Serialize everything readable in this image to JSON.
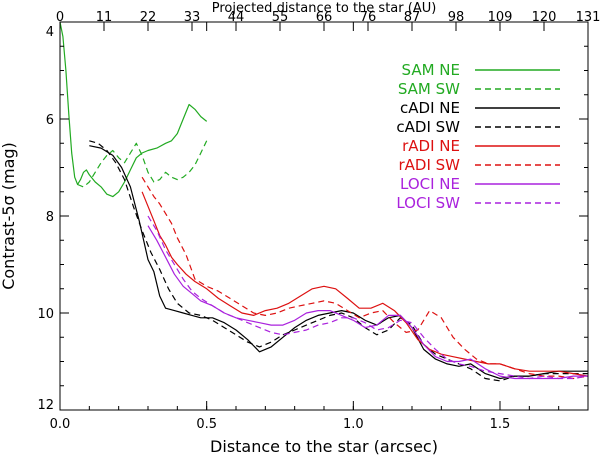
{
  "chart_data": {
    "type": "line",
    "xlabel": "Distance to the star (arcsec)",
    "x2label": "Projected distance to the star (AU)",
    "ylabel": "Contrast-5σ (mag)",
    "xlim": [
      0.0,
      1.8
    ],
    "ylim": [
      12,
      4
    ],
    "y_inverted": true,
    "grid": false,
    "legend_position": "top-right",
    "x_ticks": [
      "0.0",
      "0.5",
      "1.0",
      "1.5"
    ],
    "x_tick_values": [
      0.0,
      0.5,
      1.0,
      1.5
    ],
    "y_ticks": [
      "4",
      "6",
      "8",
      "10",
      "12"
    ],
    "y_tick_values": [
      4,
      6,
      8,
      10,
      12
    ],
    "x2_ticks": [
      "0",
      "11",
      "22",
      "33",
      "44",
      "55",
      "66",
      "76",
      "87",
      "98",
      "109",
      "120",
      "131"
    ],
    "x2_tick_positions_arcsec": [
      0.0,
      0.15,
      0.3,
      0.45,
      0.6,
      0.75,
      0.9,
      1.05,
      1.2,
      1.35,
      1.5,
      1.65,
      1.8
    ],
    "series": [
      {
        "name": "SAM NE",
        "color": "#22aa22",
        "dash": "solid",
        "x": [
          0.0,
          0.01,
          0.02,
          0.03,
          0.04,
          0.05,
          0.06,
          0.07,
          0.08,
          0.09,
          0.1,
          0.12,
          0.14,
          0.16,
          0.18,
          0.2,
          0.22,
          0.24,
          0.26,
          0.28,
          0.3,
          0.33,
          0.36,
          0.38,
          0.4,
          0.42,
          0.44,
          0.46,
          0.48,
          0.5
        ],
        "y": [
          4.0,
          4.3,
          5.0,
          5.9,
          6.7,
          7.2,
          7.35,
          7.25,
          7.1,
          7.05,
          7.15,
          7.3,
          7.4,
          7.55,
          7.6,
          7.5,
          7.3,
          7.05,
          6.8,
          6.7,
          6.65,
          6.6,
          6.5,
          6.45,
          6.3,
          6.0,
          5.7,
          5.8,
          5.95,
          6.05
        ]
      },
      {
        "name": "SAM SW",
        "color": "#22aa22",
        "dash": "dashed",
        "x": [
          0.06,
          0.08,
          0.1,
          0.12,
          0.14,
          0.16,
          0.18,
          0.2,
          0.22,
          0.24,
          0.26,
          0.28,
          0.3,
          0.32,
          0.34,
          0.36,
          0.38,
          0.4,
          0.42,
          0.44,
          0.46,
          0.48,
          0.5
        ],
        "y": [
          7.35,
          7.4,
          7.3,
          7.1,
          6.9,
          6.75,
          6.65,
          6.8,
          6.9,
          6.7,
          6.5,
          6.75,
          7.1,
          7.3,
          7.25,
          7.1,
          7.2,
          7.25,
          7.2,
          7.1,
          6.95,
          6.7,
          6.45
        ]
      },
      {
        "name": "cADI NE",
        "color": "#000000",
        "dash": "solid",
        "x": [
          0.1,
          0.14,
          0.18,
          0.21,
          0.24,
          0.27,
          0.3,
          0.32,
          0.34,
          0.36,
          0.39,
          0.42,
          0.45,
          0.48,
          0.52,
          0.56,
          0.6,
          0.64,
          0.68,
          0.72,
          0.76,
          0.8,
          0.84,
          0.88,
          0.92,
          0.96,
          1.0,
          1.04,
          1.08,
          1.12,
          1.16,
          1.2,
          1.24,
          1.28,
          1.32,
          1.36,
          1.4,
          1.45,
          1.5,
          1.55,
          1.6,
          1.65,
          1.7,
          1.75,
          1.8
        ],
        "y": [
          6.55,
          6.6,
          6.75,
          7.0,
          7.4,
          8.1,
          8.9,
          9.15,
          9.65,
          9.9,
          9.95,
          10.0,
          10.05,
          10.1,
          10.1,
          10.2,
          10.35,
          10.55,
          10.8,
          10.7,
          10.5,
          10.3,
          10.15,
          10.05,
          10.0,
          9.95,
          10.0,
          10.15,
          10.25,
          10.1,
          10.05,
          10.3,
          10.75,
          10.95,
          11.05,
          11.1,
          11.05,
          11.25,
          11.35,
          11.3,
          11.3,
          11.25,
          11.2,
          11.2,
          11.2
        ]
      },
      {
        "name": "cADI SW",
        "color": "#000000",
        "dash": "dashed",
        "x": [
          0.1,
          0.13,
          0.16,
          0.19,
          0.22,
          0.25,
          0.28,
          0.31,
          0.34,
          0.37,
          0.4,
          0.44,
          0.48,
          0.52,
          0.56,
          0.6,
          0.64,
          0.68,
          0.72,
          0.76,
          0.8,
          0.84,
          0.88,
          0.92,
          0.96,
          1.0,
          1.04,
          1.08,
          1.12,
          1.16,
          1.2,
          1.24,
          1.28,
          1.32,
          1.36,
          1.4,
          1.45,
          1.5,
          1.55,
          1.6,
          1.65,
          1.7,
          1.75,
          1.8
        ],
        "y": [
          6.45,
          6.5,
          6.65,
          6.9,
          7.25,
          7.8,
          8.3,
          8.75,
          9.1,
          9.5,
          9.8,
          10.0,
          10.05,
          10.15,
          10.3,
          10.45,
          10.6,
          10.7,
          10.6,
          10.45,
          10.35,
          10.25,
          10.15,
          10.05,
          10.0,
          10.1,
          10.3,
          10.45,
          10.35,
          10.1,
          10.25,
          10.65,
          10.85,
          10.95,
          11.05,
          11.15,
          11.35,
          11.4,
          11.3,
          11.3,
          11.25,
          11.25,
          11.25,
          11.25
        ]
      },
      {
        "name": "rADI NE",
        "color": "#dd1111",
        "dash": "solid",
        "x": [
          0.28,
          0.3,
          0.32,
          0.34,
          0.36,
          0.38,
          0.4,
          0.43,
          0.46,
          0.5,
          0.54,
          0.58,
          0.62,
          0.66,
          0.7,
          0.74,
          0.78,
          0.82,
          0.86,
          0.9,
          0.94,
          0.98,
          1.02,
          1.06,
          1.1,
          1.14,
          1.18,
          1.22,
          1.26,
          1.3,
          1.34,
          1.38,
          1.42,
          1.46,
          1.5,
          1.55,
          1.6,
          1.65,
          1.7,
          1.75,
          1.8
        ],
        "y": [
          7.5,
          7.8,
          8.1,
          8.4,
          8.6,
          8.85,
          9.0,
          9.2,
          9.35,
          9.5,
          9.7,
          9.85,
          10.0,
          10.05,
          9.95,
          9.9,
          9.8,
          9.65,
          9.5,
          9.45,
          9.5,
          9.7,
          9.9,
          9.9,
          9.8,
          9.95,
          10.2,
          10.55,
          10.75,
          10.85,
          10.9,
          10.95,
          11.0,
          11.05,
          11.05,
          11.15,
          11.2,
          11.2,
          11.2,
          11.25,
          11.3
        ]
      },
      {
        "name": "rADI SW",
        "color": "#dd1111",
        "dash": "dashed",
        "x": [
          0.28,
          0.3,
          0.32,
          0.34,
          0.36,
          0.38,
          0.4,
          0.43,
          0.46,
          0.5,
          0.54,
          0.58,
          0.62,
          0.66,
          0.7,
          0.74,
          0.78,
          0.82,
          0.86,
          0.9,
          0.94,
          0.98,
          1.02,
          1.06,
          1.1,
          1.14,
          1.18,
          1.22,
          1.26,
          1.3,
          1.34,
          1.38,
          1.42,
          1.46,
          1.5,
          1.55,
          1.6,
          1.65,
          1.7,
          1.75,
          1.8
        ],
        "y": [
          7.2,
          7.4,
          7.6,
          7.75,
          7.95,
          8.15,
          8.45,
          8.8,
          9.3,
          9.45,
          9.55,
          9.7,
          9.85,
          10.0,
          10.05,
          10.0,
          9.9,
          9.85,
          9.8,
          9.75,
          9.8,
          9.95,
          10.1,
          10.0,
          9.95,
          10.2,
          10.4,
          10.35,
          9.95,
          10.1,
          10.5,
          10.75,
          10.95,
          11.05,
          11.05,
          11.15,
          11.25,
          11.3,
          11.3,
          11.35,
          11.3
        ]
      },
      {
        "name": "LOCI NE",
        "color": "#aa22dd",
        "dash": "solid",
        "x": [
          0.3,
          0.33,
          0.36,
          0.39,
          0.42,
          0.45,
          0.48,
          0.52,
          0.56,
          0.6,
          0.64,
          0.68,
          0.72,
          0.76,
          0.8,
          0.84,
          0.88,
          0.92,
          0.96,
          1.0,
          1.04,
          1.08,
          1.12,
          1.16,
          1.2,
          1.24,
          1.28,
          1.32,
          1.36,
          1.4,
          1.45,
          1.5,
          1.55,
          1.6,
          1.65,
          1.7,
          1.75,
          1.8
        ],
        "y": [
          8.2,
          8.5,
          8.85,
          9.2,
          9.45,
          9.6,
          9.75,
          9.85,
          10.0,
          10.1,
          10.15,
          10.2,
          10.25,
          10.25,
          10.15,
          10.0,
          9.95,
          9.95,
          10.05,
          10.15,
          10.3,
          10.25,
          10.05,
          10.05,
          10.3,
          10.65,
          10.9,
          11.0,
          11.0,
          10.95,
          11.15,
          11.3,
          11.35,
          11.35,
          11.35,
          11.35,
          11.3,
          11.3
        ]
      },
      {
        "name": "LOCI SW",
        "color": "#aa22dd",
        "dash": "dashed",
        "x": [
          0.3,
          0.33,
          0.36,
          0.39,
          0.42,
          0.45,
          0.48,
          0.52,
          0.56,
          0.6,
          0.64,
          0.68,
          0.72,
          0.76,
          0.8,
          0.84,
          0.88,
          0.92,
          0.96,
          1.0,
          1.04,
          1.08,
          1.12,
          1.16,
          1.2,
          1.24,
          1.28,
          1.32,
          1.36,
          1.4,
          1.45,
          1.5,
          1.55,
          1.6,
          1.65,
          1.7,
          1.75,
          1.8
        ],
        "y": [
          8.0,
          8.3,
          8.7,
          9.0,
          9.3,
          9.55,
          9.7,
          9.85,
          10.0,
          10.1,
          10.2,
          10.3,
          10.4,
          10.45,
          10.4,
          10.35,
          10.25,
          10.2,
          10.1,
          10.1,
          10.2,
          10.35,
          10.3,
          10.15,
          10.2,
          10.5,
          10.75,
          10.95,
          11.05,
          11.1,
          11.2,
          11.25,
          11.3,
          11.35,
          11.3,
          11.35,
          11.35,
          11.3
        ]
      }
    ]
  }
}
